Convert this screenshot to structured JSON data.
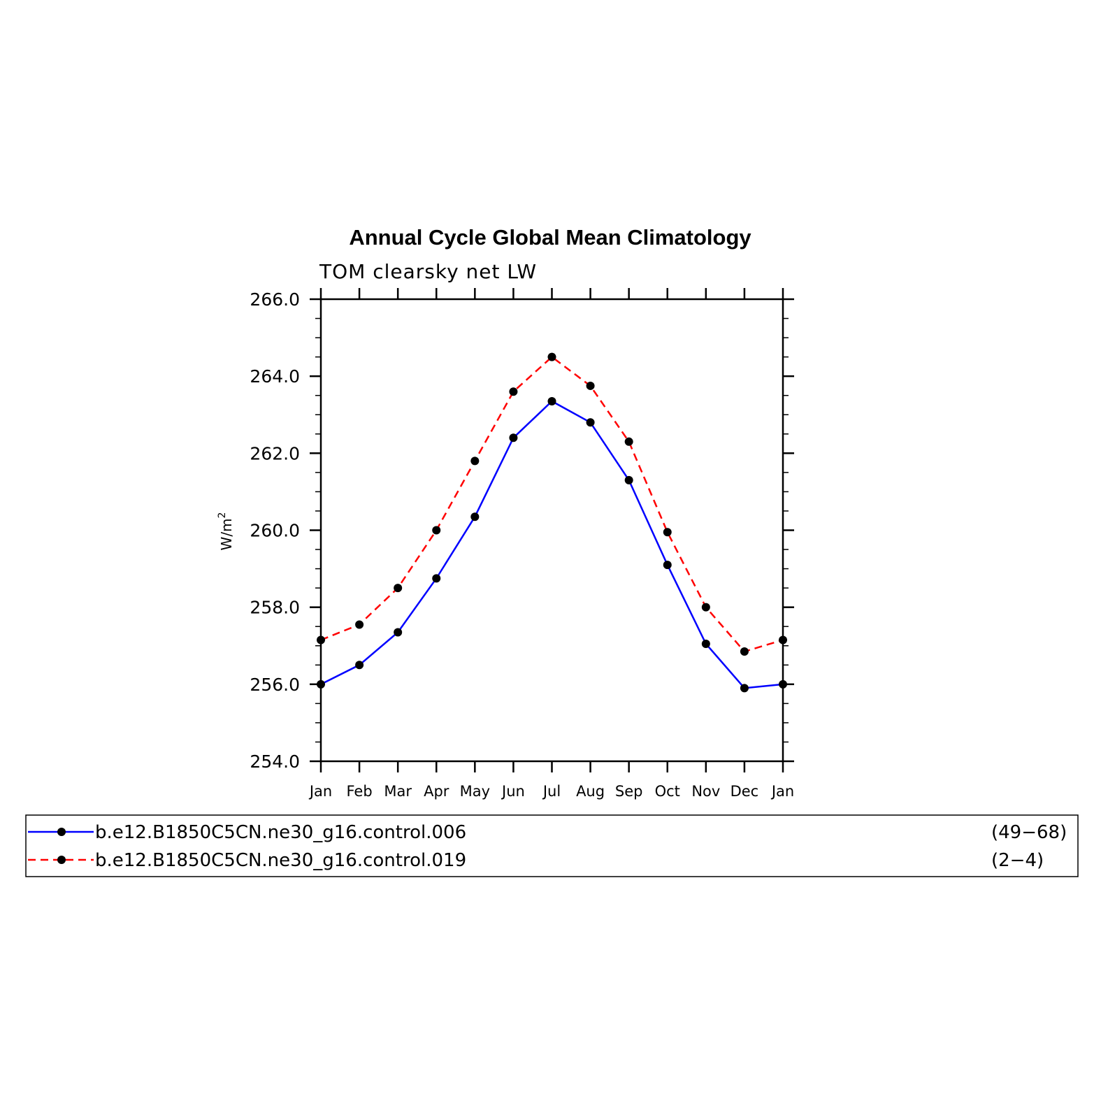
{
  "chart_data": {
    "type": "line",
    "title": "Annual Cycle Global Mean Climatology",
    "subtitle": "TOM clearsky net LW",
    "ylabel": "W/m",
    "ylabel_superscript": "2",
    "categories": [
      "Jan",
      "Feb",
      "Mar",
      "Apr",
      "May",
      "Jun",
      "Jul",
      "Aug",
      "Sep",
      "Oct",
      "Nov",
      "Dec",
      "Jan"
    ],
    "ylim": [
      254.0,
      266.0
    ],
    "yticks": [
      "254.0",
      "256.0",
      "258.0",
      "260.0",
      "262.0",
      "264.0",
      "266.0"
    ],
    "grid": false,
    "legend_placement": "bottom",
    "series": [
      {
        "name": "b.e12.B1850C5CN.ne30_g16.control.006",
        "years": "(49−68)",
        "color": "#0000ff",
        "dash": "solid",
        "values": [
          256.0,
          256.5,
          257.35,
          258.75,
          260.35,
          262.4,
          263.35,
          262.8,
          261.3,
          259.1,
          257.05,
          255.9,
          256.0
        ]
      },
      {
        "name": "b.e12.B1850C5CN.ne30_g16.control.019",
        "years": "(2−4)",
        "color": "#ff0000",
        "dash": "dashed",
        "values": [
          257.15,
          257.55,
          258.5,
          260.0,
          261.8,
          263.6,
          264.5,
          263.75,
          262.3,
          259.95,
          258.0,
          256.85,
          257.15
        ]
      }
    ]
  }
}
